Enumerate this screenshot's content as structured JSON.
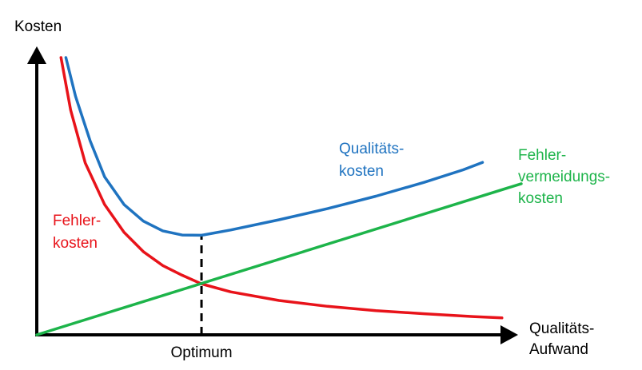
{
  "chart_data": {
    "type": "line",
    "title": "",
    "ylabel": "Kosten",
    "xlabel_lines": [
      "Qualitäts-",
      "Aufwand"
    ],
    "xlim": [
      0,
      100
    ],
    "ylim": [
      0,
      100
    ],
    "grid": false,
    "optimum": {
      "x": 34,
      "label": "Optimum"
    },
    "series": [
      {
        "key": "fehlerkosten",
        "label_lines": [
          "Fehler-",
          "kosten"
        ],
        "color": "#e8131a",
        "x": [
          5,
          7,
          10,
          14,
          18,
          22,
          26,
          30,
          34,
          40,
          50,
          60,
          70,
          80,
          90,
          96
        ],
        "y": [
          100,
          81,
          62,
          47,
          37,
          30,
          25,
          21.5,
          18.4,
          15.5,
          12.4,
          10.3,
          8.7,
          7.6,
          6.6,
          6.1
        ]
      },
      {
        "key": "fehlervermeidungskosten",
        "label_lines": [
          "Fehler-",
          "vermeidungs-",
          "kosten"
        ],
        "color": "#1db44a",
        "x": [
          0,
          100
        ],
        "y": [
          0,
          54.5
        ]
      },
      {
        "key": "qualitaetskosten",
        "label_lines": [
          "Qualitäts-",
          "kosten"
        ],
        "color": "#1f73c0",
        "x": [
          6,
          8,
          11,
          14,
          18,
          22,
          26,
          30,
          34,
          40,
          50,
          60,
          70,
          80,
          88,
          92
        ],
        "y": [
          100,
          86,
          70,
          57,
          47,
          41,
          37.5,
          36,
          35.9,
          37.8,
          41.5,
          45.5,
          50,
          55,
          59.5,
          62.2
        ]
      }
    ]
  }
}
